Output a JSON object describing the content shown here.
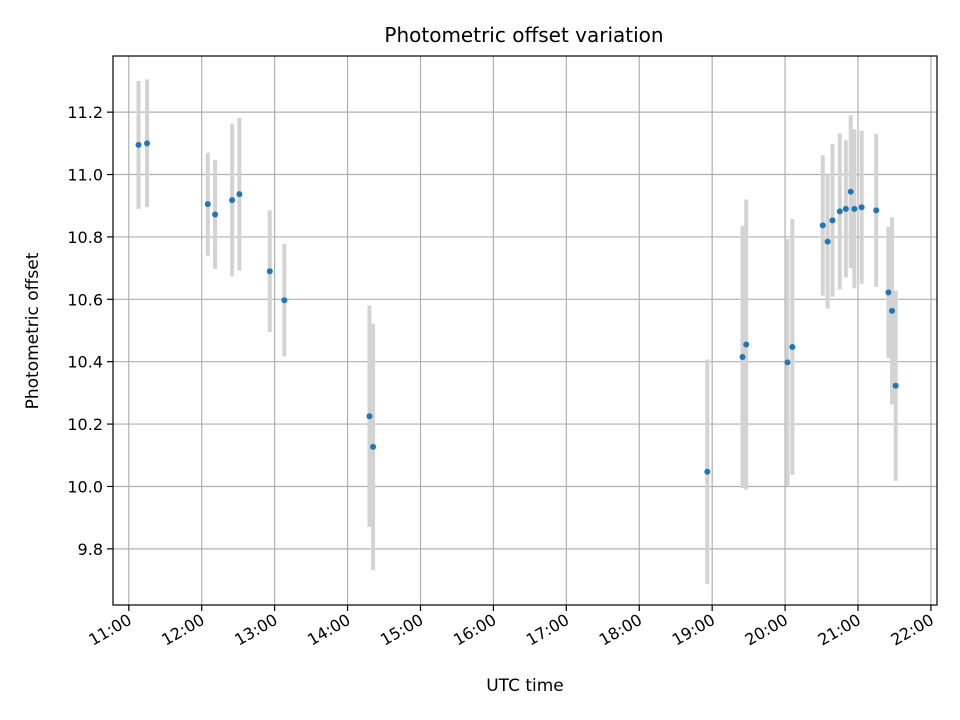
{
  "chart_data": {
    "type": "scatter",
    "title": "Photometric offset variation",
    "xlabel": "UTC time",
    "ylabel": "Photometric offset",
    "grid": true,
    "xlim": [
      "10:47",
      "22:05"
    ],
    "ylim": [
      9.62,
      11.38
    ],
    "x_ticks": [
      "11:00",
      "12:00",
      "13:00",
      "14:00",
      "15:00",
      "16:00",
      "17:00",
      "18:00",
      "19:00",
      "20:00",
      "21:00",
      "22:00"
    ],
    "y_ticks": [
      "9.8",
      "10.0",
      "10.2",
      "10.4",
      "10.6",
      "10.8",
      "11.0",
      "11.2"
    ],
    "colors": {
      "point": "#1f77b4",
      "errorbar": "#d3d3d3",
      "grid": "#b0b0b0"
    },
    "points": [
      {
        "x": "11:08",
        "y": 11.095,
        "err": 0.205
      },
      {
        "x": "11:15",
        "y": 11.1,
        "err": 0.205
      },
      {
        "x": "12:05",
        "y": 10.905,
        "err": 0.165
      },
      {
        "x": "12:11",
        "y": 10.872,
        "err": 0.175
      },
      {
        "x": "12:25",
        "y": 10.918,
        "err": 0.245
      },
      {
        "x": "12:31",
        "y": 10.937,
        "err": 0.245
      },
      {
        "x": "12:56",
        "y": 10.69,
        "err": 0.195
      },
      {
        "x": "13:08",
        "y": 10.597,
        "err": 0.18
      },
      {
        "x": "14:18",
        "y": 10.225,
        "err": 0.355
      },
      {
        "x": "14:21",
        "y": 10.127,
        "err": 0.395
      },
      {
        "x": "18:56",
        "y": 10.047,
        "err": 0.36
      },
      {
        "x": "19:25",
        "y": 10.415,
        "err": 0.42
      },
      {
        "x": "19:28",
        "y": 10.455,
        "err": 0.465
      },
      {
        "x": "20:02",
        "y": 10.398,
        "err": 0.395
      },
      {
        "x": "20:06",
        "y": 10.447,
        "err": 0.41
      },
      {
        "x": "20:31",
        "y": 10.837,
        "err": 0.225
      },
      {
        "x": "20:35",
        "y": 10.785,
        "err": 0.215
      },
      {
        "x": "20:39",
        "y": 10.853,
        "err": 0.245
      },
      {
        "x": "20:45",
        "y": 10.882,
        "err": 0.25
      },
      {
        "x": "20:50",
        "y": 10.89,
        "err": 0.22
      },
      {
        "x": "20:54",
        "y": 10.945,
        "err": 0.245
      },
      {
        "x": "20:57",
        "y": 10.89,
        "err": 0.255
      },
      {
        "x": "21:03",
        "y": 10.895,
        "err": 0.245
      },
      {
        "x": "21:15",
        "y": 10.885,
        "err": 0.245
      },
      {
        "x": "21:25",
        "y": 10.622,
        "err": 0.21
      },
      {
        "x": "21:28",
        "y": 10.563,
        "err": 0.3
      },
      {
        "x": "21:31",
        "y": 10.323,
        "err": 0.305
      }
    ]
  }
}
